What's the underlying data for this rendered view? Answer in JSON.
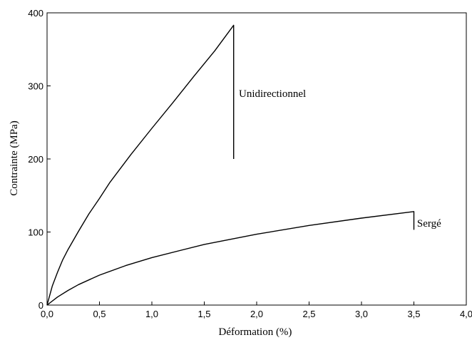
{
  "chart_data": {
    "type": "line",
    "xlabel": "Déformation (%)",
    "ylabel": "Contrainte (MPa)",
    "xlim": [
      0,
      4
    ],
    "ylim": [
      0,
      400
    ],
    "x_ticks": [
      "0,0",
      "0,5",
      "1,0",
      "1,5",
      "2,0",
      "2,5",
      "3,0",
      "3,5",
      "4,0"
    ],
    "y_ticks": [
      "0",
      "100",
      "200",
      "300",
      "400"
    ],
    "grid": false,
    "legend": "none",
    "line_color": "#000000",
    "series": [
      {
        "x": [
          0,
          0.05,
          0.1,
          0.15,
          0.2,
          0.3,
          0.4,
          0.5,
          0.6,
          0.8,
          1.0,
          1.2,
          1.4,
          1.6,
          1.78,
          1.78
        ],
        "y": [
          0,
          26,
          45,
          62,
          76,
          101,
          125,
          146,
          168,
          206,
          242,
          277,
          313,
          348,
          383,
          200
        ]
      },
      {
        "x": [
          0,
          0.1,
          0.2,
          0.3,
          0.5,
          0.75,
          1.0,
          1.5,
          2.0,
          2.5,
          3.0,
          3.5,
          3.5
        ],
        "y": [
          0,
          11,
          20,
          28,
          41,
          54,
          65,
          83,
          97,
          109,
          119,
          128,
          103
        ]
      }
    ],
    "annotations": [
      {
        "text": "Unidirectionnel",
        "x": 1.83,
        "y": 290
      },
      {
        "text": "Sergé",
        "x": 3.53,
        "y": 112
      }
    ]
  }
}
